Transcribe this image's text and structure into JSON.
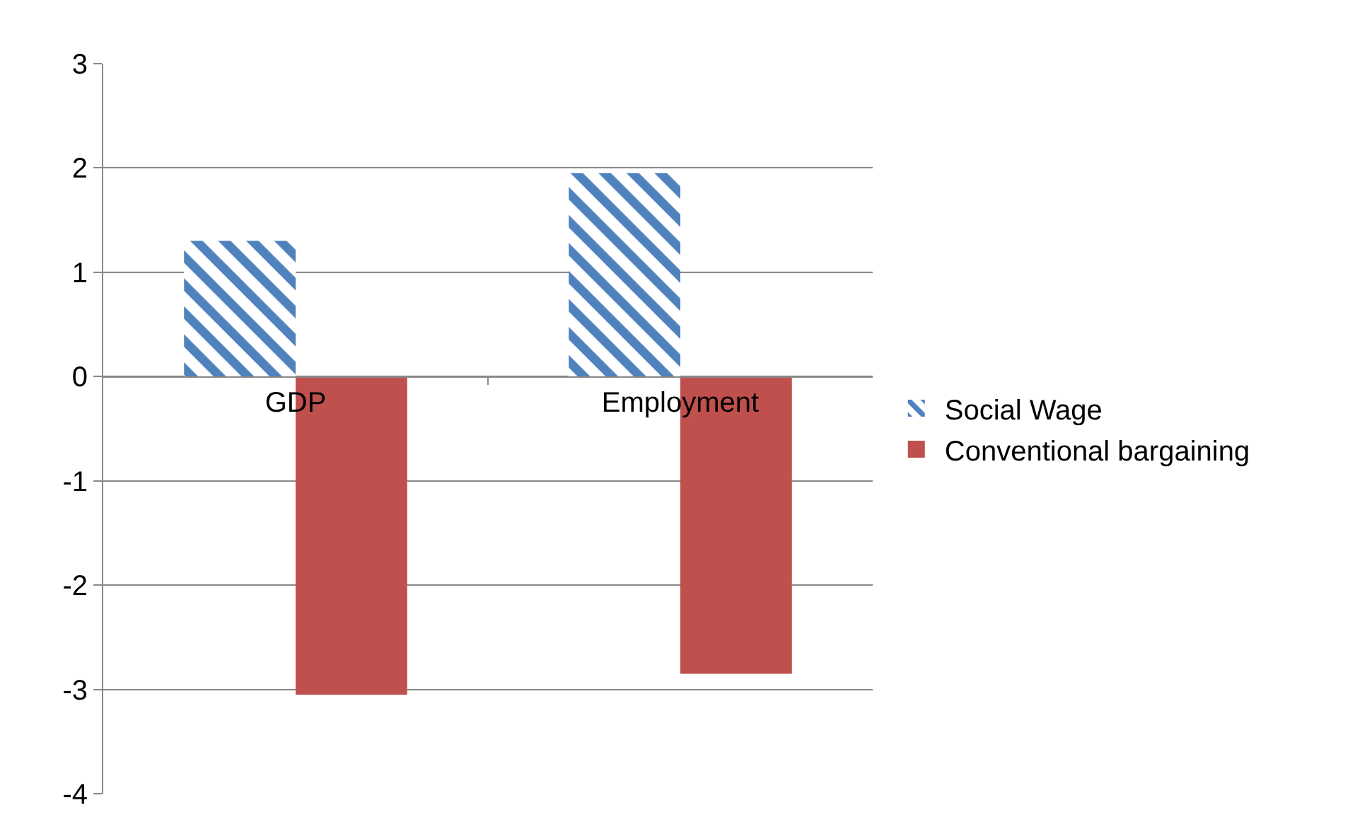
{
  "chart_data": {
    "type": "bar",
    "categories": [
      "GDP",
      "Employment"
    ],
    "series": [
      {
        "name": "Social Wage",
        "color": "#4f81bd",
        "values": [
          1.3,
          1.95
        ]
      },
      {
        "name": "Conventional bargaining",
        "color": "#c0504d",
        "values": [
          -3.05,
          -2.85
        ]
      }
    ],
    "ylim": [
      -4,
      3
    ],
    "yticks": [
      -4,
      -3,
      -2,
      -1,
      0,
      1,
      2,
      3
    ],
    "grid": "y",
    "legend": "right"
  }
}
